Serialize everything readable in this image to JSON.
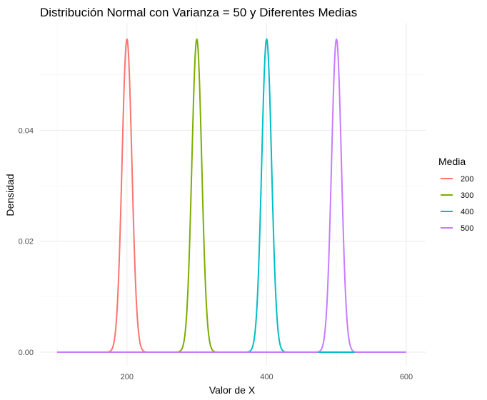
{
  "chart_data": {
    "type": "line",
    "title": "Distribución Normal con Varianza = 50 y Diferentes Medias",
    "xlabel": "Valor de X",
    "ylabel": "Densidad",
    "xlim": [
      100,
      600
    ],
    "ylim": [
      0,
      0.0564
    ],
    "variance": 50,
    "x_ticks": [
      200,
      400,
      600
    ],
    "y_ticks": [
      0.0,
      0.02,
      0.04
    ],
    "y_tick_labels": [
      "0.00",
      "0.02",
      "0.04"
    ],
    "grid": true,
    "legend": {
      "title": "Media",
      "position": "right"
    },
    "series": [
      {
        "name": "200",
        "mean": 200,
        "color": "#F8766D"
      },
      {
        "name": "300",
        "mean": 300,
        "color": "#7CAE00"
      },
      {
        "name": "400",
        "mean": 400,
        "color": "#00BFC4"
      },
      {
        "name": "500",
        "mean": 500,
        "color": "#C77CFF"
      }
    ]
  }
}
